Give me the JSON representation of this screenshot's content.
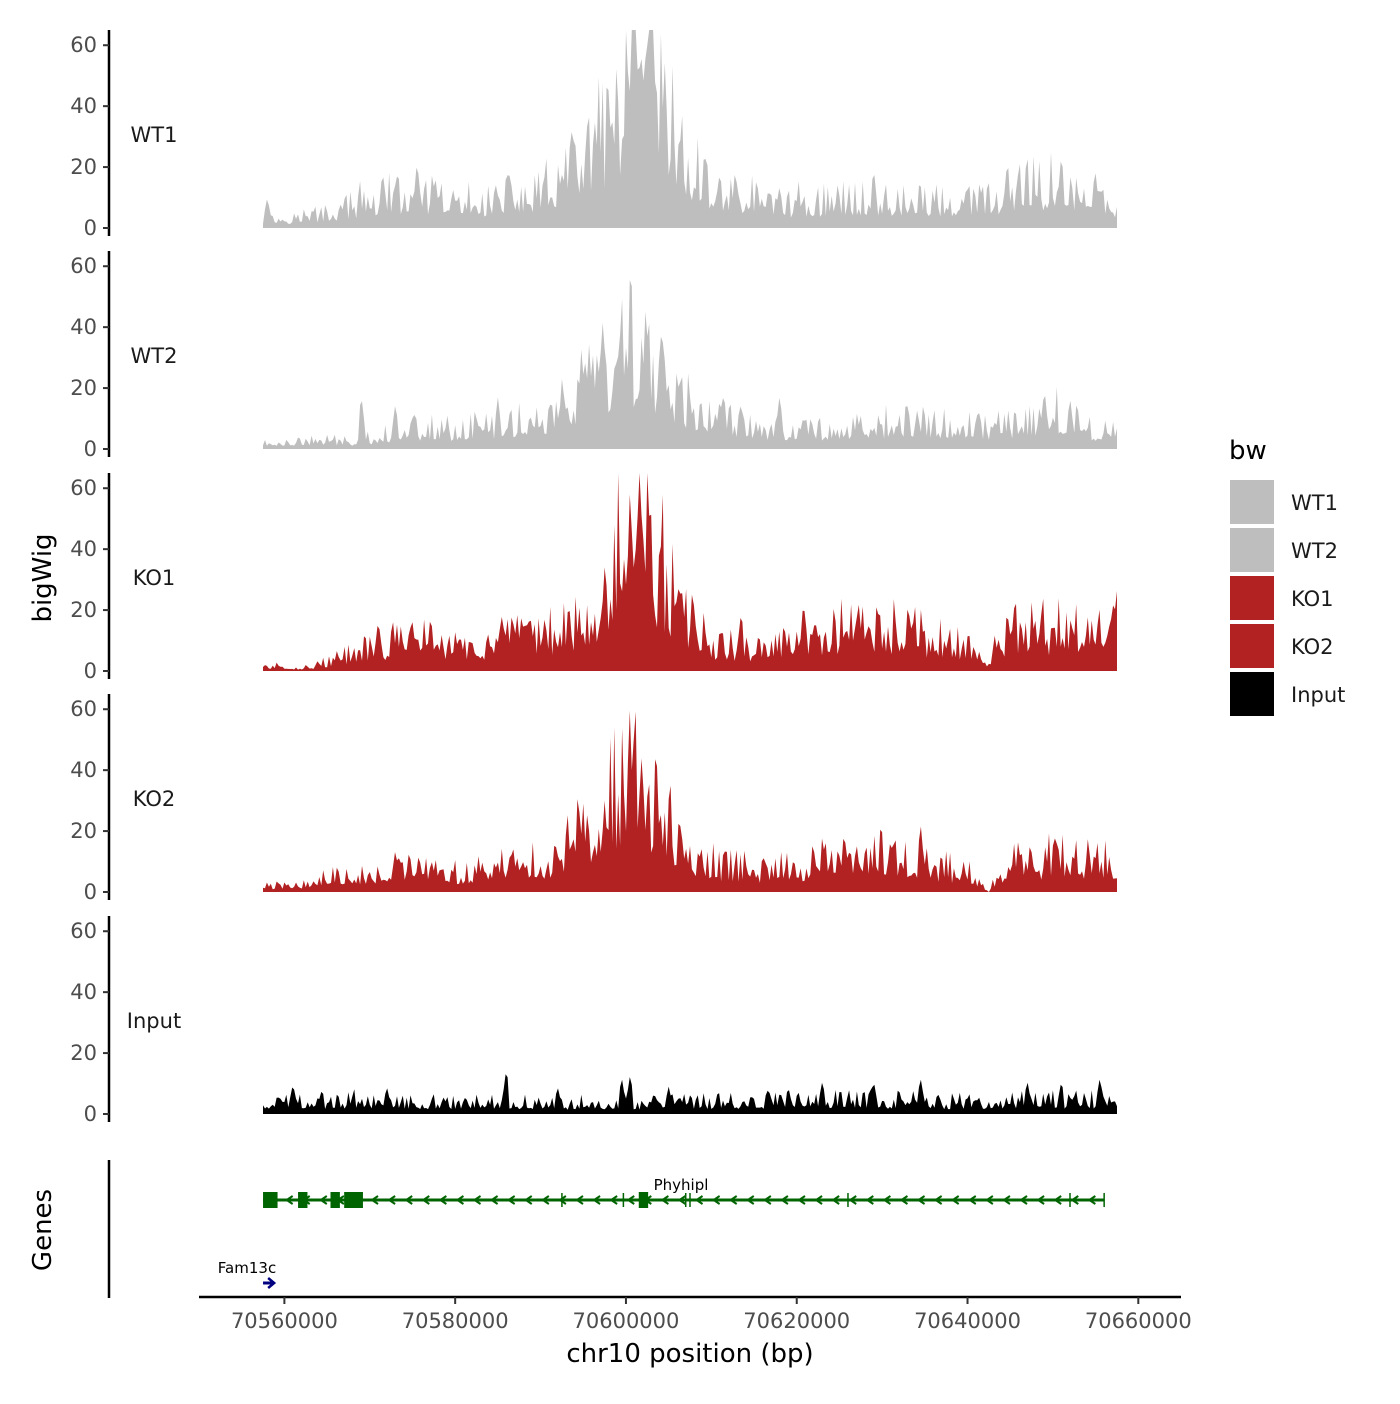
{
  "chart_data": {
    "type": "area",
    "title": "",
    "xlabel": "chr10 position (bp)",
    "ylabel": "bigWig",
    "genes_label": "Genes",
    "xlim": [
      70550000,
      70665000
    ],
    "x_ticks": [
      70560000,
      70580000,
      70600000,
      70620000,
      70640000,
      70660000
    ],
    "x_tick_labels": [
      "70560000",
      "70580000",
      "70600000",
      "70620000",
      "70640000",
      "70660000"
    ],
    "ylim": [
      0,
      65
    ],
    "y_ticks": [
      0,
      20,
      40,
      60
    ],
    "y_tick_labels": [
      "0",
      "20",
      "40",
      "60"
    ],
    "track_start": 70557500,
    "track_end": 70657500,
    "legend": {
      "title": "bw",
      "position": "right",
      "entries": [
        {
          "label": "WT1",
          "color": "#bebebe"
        },
        {
          "label": "WT2",
          "color": "#bebebe"
        },
        {
          "label": "KO1",
          "color": "#b22222"
        },
        {
          "label": "KO2",
          "color": "#b22222"
        },
        {
          "label": "Input",
          "color": "#000000"
        }
      ]
    },
    "series": [
      {
        "name": "WT1",
        "color": "#bebebe",
        "x": [
          70557500,
          70565000,
          70570000,
          70575000,
          70580000,
          70585000,
          70590000,
          70593000,
          70596000,
          70599000,
          70601000,
          70602000,
          70604000,
          70606000,
          70608000,
          70612000,
          70620000,
          70630000,
          70640000,
          70645000,
          70650000,
          70655000,
          70657500
        ],
        "values": [
          3,
          5,
          10,
          12,
          9,
          10,
          12,
          18,
          28,
          38,
          46,
          55,
          42,
          30,
          18,
          12,
          9,
          10,
          9,
          12,
          16,
          10,
          8
        ],
        "peaks": [
          [
            70558000,
            10
          ],
          [
            70571500,
            19
          ],
          [
            70586500,
            16
          ],
          [
            70594000,
            31
          ],
          [
            70598000,
            43
          ],
          [
            70600500,
            48
          ],
          [
            70602200,
            62
          ],
          [
            70603500,
            55
          ],
          [
            70605500,
            37
          ],
          [
            70611000,
            19
          ],
          [
            70618000,
            14
          ],
          [
            70629000,
            20
          ],
          [
            70646000,
            20
          ],
          [
            70651000,
            25
          ],
          [
            70655000,
            18
          ]
        ]
      },
      {
        "name": "WT2",
        "color": "#bebebe",
        "x": [
          70557500,
          70565000,
          70569000,
          70575000,
          70580000,
          70585000,
          70590000,
          70594000,
          70598000,
          70600000,
          70602000,
          70604000,
          70606000,
          70608000,
          70612000,
          70620000,
          70630000,
          70640000,
          70645000,
          70650000,
          70655000,
          70657500
        ],
        "values": [
          2,
          3,
          3,
          8,
          7,
          9,
          11,
          18,
          26,
          32,
          35,
          28,
          20,
          13,
          10,
          7,
          9,
          8,
          9,
          13,
          7,
          6
        ],
        "peaks": [
          [
            70569000,
            18
          ],
          [
            70573000,
            15
          ],
          [
            70585000,
            17
          ],
          [
            70594500,
            23
          ],
          [
            70597000,
            34
          ],
          [
            70599000,
            35
          ],
          [
            70600500,
            43
          ],
          [
            70602500,
            37
          ],
          [
            70604500,
            31
          ],
          [
            70607500,
            17
          ],
          [
            70611000,
            17
          ],
          [
            70618000,
            18
          ],
          [
            70633000,
            15
          ],
          [
            70649000,
            20
          ],
          [
            70652000,
            17
          ]
        ]
      },
      {
        "name": "KO1",
        "color": "#b22222",
        "x": [
          70557500,
          70562000,
          70565000,
          70570000,
          70575000,
          70580000,
          70585000,
          70590000,
          70594000,
          70596000,
          70598000,
          70600000,
          70601500,
          70603000,
          70605000,
          70607000,
          70610000,
          70615000,
          70620000,
          70625000,
          70630000,
          70635000,
          70640000,
          70642000,
          70645000,
          70650000,
          70657500
        ],
        "values": [
          2,
          1,
          3,
          8,
          12,
          9,
          10,
          12,
          18,
          24,
          30,
          48,
          50,
          42,
          30,
          18,
          10,
          7,
          12,
          14,
          15,
          12,
          8,
          3,
          15,
          14,
          16
        ],
        "peaks": [
          [
            70571000,
            17
          ],
          [
            70575000,
            16
          ],
          [
            70585500,
            19
          ],
          [
            70590500,
            18
          ],
          [
            70597500,
            34
          ],
          [
            70600500,
            62
          ],
          [
            70602500,
            48
          ],
          [
            70604000,
            47
          ],
          [
            70606000,
            26
          ],
          [
            70613500,
            20
          ],
          [
            70622000,
            16
          ],
          [
            70627000,
            19
          ],
          [
            70629500,
            20
          ],
          [
            70633500,
            16
          ],
          [
            70645500,
            22
          ],
          [
            70657000,
            23
          ]
        ]
      },
      {
        "name": "KO2",
        "color": "#b22222",
        "x": [
          70557500,
          70562000,
          70565000,
          70570000,
          70575000,
          70580000,
          70584000,
          70587000,
          70592000,
          70593000,
          70596000,
          70598000,
          70600000,
          70601500,
          70603000,
          70605000,
          70607000,
          70610000,
          70615000,
          70620000,
          70625000,
          70630000,
          70635000,
          70640000,
          70642500,
          70643500,
          70645000,
          70650000,
          70657500
        ],
        "values": [
          2,
          3,
          5,
          7,
          9,
          6,
          8,
          12,
          9,
          18,
          22,
          30,
          40,
          44,
          30,
          22,
          14,
          10,
          8,
          9,
          12,
          13,
          10,
          7,
          0,
          6,
          10,
          12,
          10
        ],
        "peaks": [
          [
            70573000,
            14
          ],
          [
            70586500,
            14
          ],
          [
            70593500,
            16
          ],
          [
            70595500,
            27
          ],
          [
            70597500,
            30
          ],
          [
            70600500,
            54
          ],
          [
            70602000,
            30
          ],
          [
            70604000,
            28
          ],
          [
            70606500,
            20
          ],
          [
            70622000,
            14
          ],
          [
            70627000,
            16
          ],
          [
            70631000,
            18
          ],
          [
            70634500,
            23
          ],
          [
            70646000,
            15
          ],
          [
            70650500,
            17
          ]
        ]
      },
      {
        "name": "Input",
        "color": "#000000",
        "x": [
          70557500,
          70570000,
          70580000,
          70590000,
          70600000,
          70610000,
          70620000,
          70630000,
          70640000,
          70650000,
          70657500
        ],
        "values": [
          4,
          5,
          4,
          4,
          4,
          4,
          5,
          5,
          4,
          5,
          5
        ],
        "peaks": [
          [
            70561000,
            10
          ],
          [
            70572000,
            9
          ],
          [
            70586000,
            15
          ],
          [
            70592000,
            9
          ],
          [
            70599500,
            12
          ],
          [
            70600500,
            13
          ],
          [
            70605000,
            9
          ],
          [
            70619000,
            9
          ],
          [
            70623000,
            11
          ],
          [
            70629000,
            11
          ],
          [
            70634500,
            12
          ],
          [
            70647000,
            11
          ],
          [
            70651000,
            11
          ],
          [
            70655500,
            12
          ]
        ]
      }
    ],
    "genes": [
      {
        "name": "Phyhipl",
        "strand": "-",
        "color": "#006400",
        "start": 70557500,
        "end": 70656000,
        "exons": [
          [
            70557500,
            70559200
          ],
          [
            70561600,
            70562700
          ],
          [
            70565400,
            70566500
          ],
          [
            70567000,
            70569200
          ]
        ],
        "small_exons": [
          [
            70601500,
            70602600
          ]
        ]
      },
      {
        "name": "Fam13c",
        "strand": "+",
        "color": "#000080",
        "start": 70557500,
        "end": 70558800
      }
    ]
  }
}
